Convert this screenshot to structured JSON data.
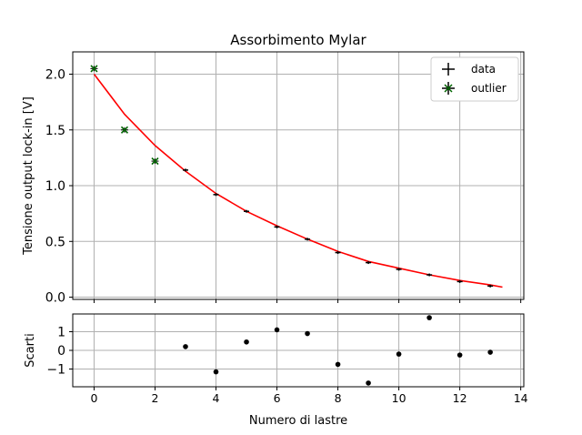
{
  "chart_data": [
    {
      "type": "scatter",
      "title": "Assorbimento Mylar",
      "xlabel": "",
      "ylabel": "Tensione output lock-in [V]",
      "xlim": [
        -0.7,
        14.1
      ],
      "ylim": [
        -0.02,
        2.2
      ],
      "xticks": [
        0,
        2,
        4,
        6,
        8,
        10,
        12,
        14
      ],
      "yticks": [
        0.0,
        0.5,
        1.0,
        1.5,
        2.0
      ],
      "ytick_labels": [
        "0.0",
        "0.5",
        "1.0",
        "1.5",
        "2.0"
      ],
      "grid": true,
      "legend": {
        "placement": "top-right",
        "entries": [
          "data",
          "outlier"
        ]
      },
      "series": [
        {
          "name": "data",
          "color": "#000000",
          "x": [
            3,
            4,
            5,
            6,
            7,
            8,
            9,
            10,
            11,
            12,
            13
          ],
          "y": [
            1.14,
            0.92,
            0.77,
            0.63,
            0.52,
            0.4,
            0.31,
            0.25,
            0.2,
            0.14,
            0.1
          ]
        },
        {
          "name": "outlier",
          "color": "#006400",
          "x": [
            0,
            1,
            2
          ],
          "y": [
            2.05,
            1.5,
            1.22
          ]
        },
        {
          "name": "",
          "type": "line",
          "color": "#ff0000",
          "x": [
            0,
            1,
            2,
            3,
            4,
            5,
            6,
            7,
            8,
            9,
            10,
            11,
            12,
            13,
            13.4
          ],
          "y": [
            2.0,
            1.64,
            1.36,
            1.13,
            0.93,
            0.77,
            0.64,
            0.52,
            0.41,
            0.32,
            0.26,
            0.2,
            0.15,
            0.11,
            0.09
          ]
        }
      ]
    },
    {
      "type": "scatter",
      "title": "",
      "xlabel": "Numero di lastre",
      "ylabel": "Scarti",
      "xlim": [
        -0.7,
        14.1
      ],
      "ylim": [
        -1.95,
        1.95
      ],
      "xticks": [
        0,
        2,
        4,
        6,
        8,
        10,
        12,
        14
      ],
      "yticks": [
        -1,
        0,
        1
      ],
      "ytick_labels": [
        "−1",
        "0",
        "1"
      ],
      "grid": true,
      "series": [
        {
          "name": "",
          "color": "#000000",
          "x": [
            3,
            4,
            5,
            6,
            7,
            8,
            9,
            10,
            11,
            12,
            13
          ],
          "y": [
            0.2,
            -1.15,
            0.45,
            1.1,
            0.9,
            -0.75,
            -1.75,
            -0.2,
            1.75,
            -0.25,
            -0.1
          ]
        }
      ]
    }
  ]
}
